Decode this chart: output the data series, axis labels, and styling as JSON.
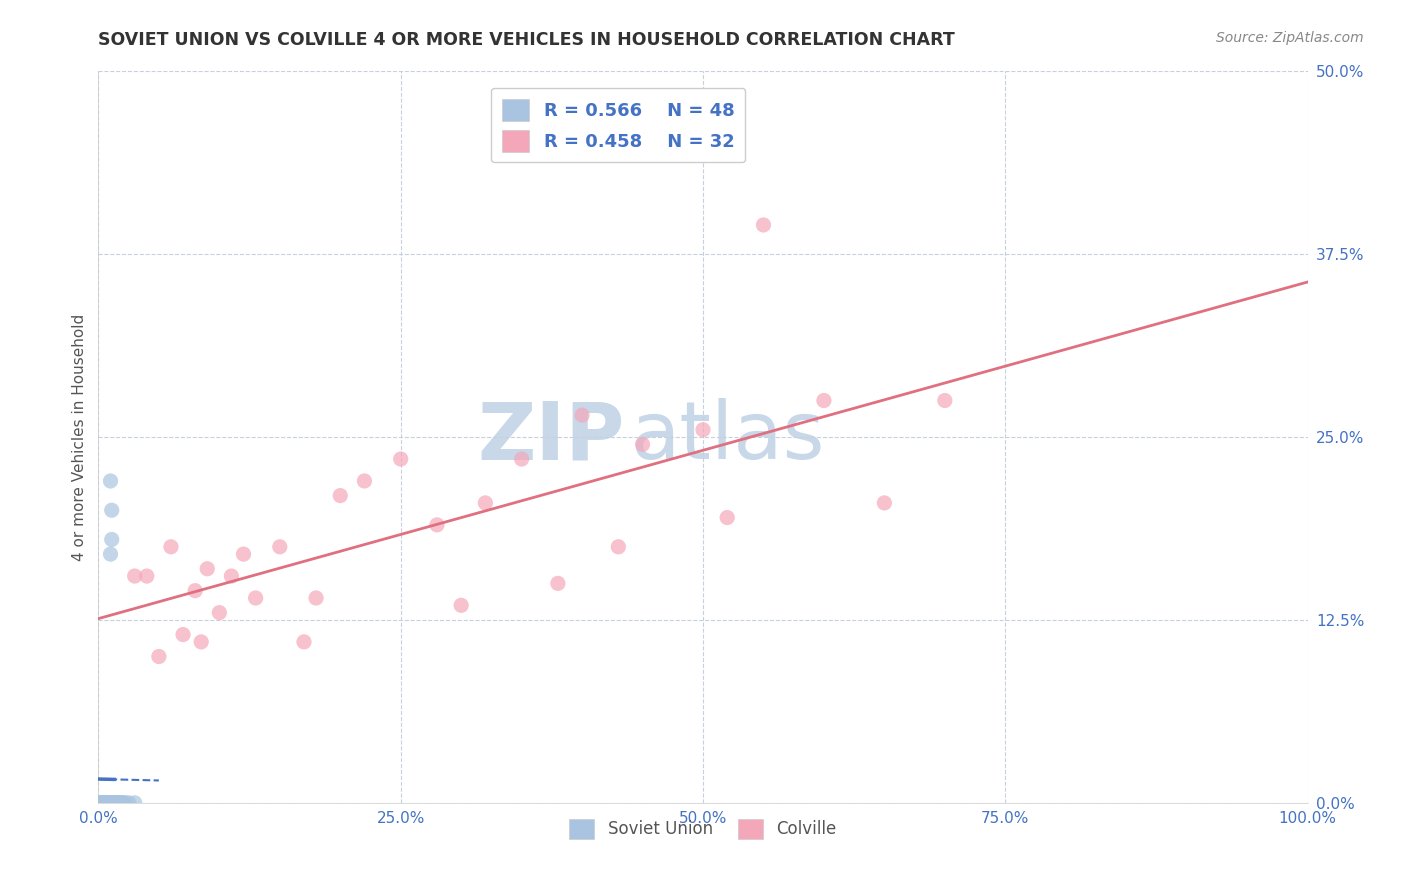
{
  "title": "SOVIET UNION VS COLVILLE 4 OR MORE VEHICLES IN HOUSEHOLD CORRELATION CHART",
  "source": "Source: ZipAtlas.com",
  "ylabel": "4 or more Vehicles in Household",
  "xlim": [
    0.0,
    1.0
  ],
  "ylim": [
    0.0,
    0.5
  ],
  "xticks": [
    0.0,
    0.25,
    0.5,
    0.75,
    1.0
  ],
  "xticklabels": [
    "0.0%",
    "25.0%",
    "50.0%",
    "75.0%",
    "100.0%"
  ],
  "yticks": [
    0.0,
    0.125,
    0.25,
    0.375,
    0.5
  ],
  "yticklabels": [
    "0.0%",
    "12.5%",
    "25.0%",
    "37.5%",
    "50.0%"
  ],
  "soviet_R": 0.566,
  "soviet_N": 48,
  "colville_R": 0.458,
  "colville_N": 32,
  "soviet_color": "#a8c4e0",
  "colville_color": "#f4a7b9",
  "soviet_line_color": "#4472c4",
  "colville_line_color": "#e07080",
  "watermark_top": "ZIP",
  "watermark_bot": "atlas",
  "watermark_color": "#c8d8e8",
  "background_color": "#ffffff",
  "soviet_x": [
    0.002,
    0.002,
    0.003,
    0.003,
    0.003,
    0.003,
    0.004,
    0.004,
    0.004,
    0.005,
    0.005,
    0.005,
    0.005,
    0.006,
    0.006,
    0.007,
    0.007,
    0.008,
    0.008,
    0.009,
    0.009,
    0.009,
    0.01,
    0.01,
    0.01,
    0.01,
    0.01,
    0.01,
    0.011,
    0.011,
    0.012,
    0.012,
    0.012,
    0.013,
    0.013,
    0.014,
    0.014,
    0.015,
    0.015,
    0.016,
    0.017,
    0.018,
    0.019,
    0.02,
    0.02,
    0.022,
    0.025,
    0.03
  ],
  "soviet_y": [
    0.0,
    0.0,
    0.0,
    0.0,
    0.0,
    0.0,
    0.0,
    0.0,
    0.0,
    0.0,
    0.0,
    0.0,
    0.0,
    0.0,
    0.0,
    0.0,
    0.0,
    0.0,
    0.0,
    0.0,
    0.0,
    0.0,
    0.0,
    0.0,
    0.0,
    0.0,
    0.17,
    0.22,
    0.18,
    0.2,
    0.0,
    0.0,
    0.0,
    0.0,
    0.0,
    0.0,
    0.0,
    0.0,
    0.0,
    0.0,
    0.0,
    0.0,
    0.0,
    0.0,
    0.0,
    0.0,
    0.0,
    0.0
  ],
  "colville_x": [
    0.03,
    0.04,
    0.05,
    0.06,
    0.07,
    0.08,
    0.085,
    0.09,
    0.1,
    0.11,
    0.12,
    0.13,
    0.15,
    0.17,
    0.18,
    0.2,
    0.22,
    0.25,
    0.28,
    0.3,
    0.32,
    0.35,
    0.38,
    0.4,
    0.43,
    0.45,
    0.5,
    0.52,
    0.55,
    0.6,
    0.65,
    0.7
  ],
  "colville_y": [
    0.155,
    0.155,
    0.1,
    0.175,
    0.115,
    0.145,
    0.11,
    0.16,
    0.13,
    0.155,
    0.17,
    0.14,
    0.175,
    0.11,
    0.14,
    0.21,
    0.22,
    0.235,
    0.19,
    0.135,
    0.205,
    0.235,
    0.15,
    0.265,
    0.175,
    0.245,
    0.255,
    0.195,
    0.395,
    0.275,
    0.205,
    0.275
  ]
}
